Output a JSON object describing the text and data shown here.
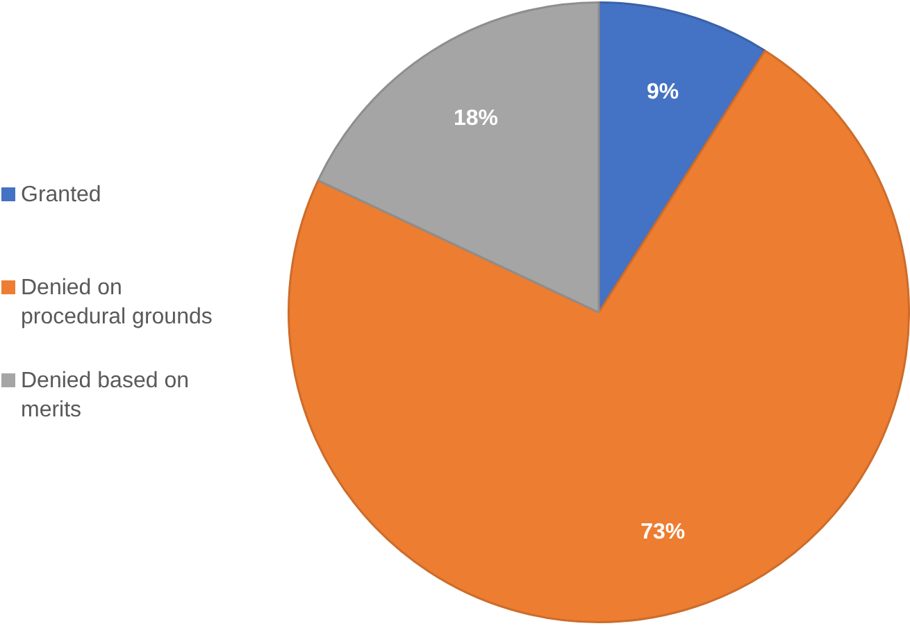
{
  "chart_data": {
    "type": "pie",
    "categories": [
      "Granted",
      "Denied on procedural grounds",
      "Denied based on merits"
    ],
    "values": [
      9,
      73,
      18
    ],
    "colors": [
      "#4472c4",
      "#ed7d31",
      "#a5a5a5"
    ],
    "value_labels": [
      "9%",
      "73%",
      "18%"
    ],
    "legend": "left"
  }
}
